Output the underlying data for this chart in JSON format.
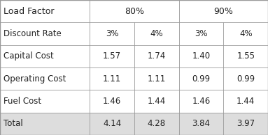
{
  "header_row1": [
    "Load Factor",
    "80%",
    "90%"
  ],
  "header_row2": [
    "Discount Rate",
    "3%",
    "4%",
    "3%",
    "4%"
  ],
  "rows": [
    [
      "Capital Cost",
      "1.57",
      "1.74",
      "1.40",
      "1.55"
    ],
    [
      "Operating Cost",
      "1.11",
      "1.11",
      "0.99",
      "0.99"
    ],
    [
      "Fuel Cost",
      "1.46",
      "1.44",
      "1.46",
      "1.44"
    ],
    [
      "Total",
      "4.14",
      "4.28",
      "3.84",
      "3.97"
    ]
  ],
  "background_color": "#ffffff",
  "border_color": "#999999",
  "text_color": "#222222",
  "total_bg": "#dddddd",
  "font_size": 8.5,
  "header_font_size": 9.0
}
